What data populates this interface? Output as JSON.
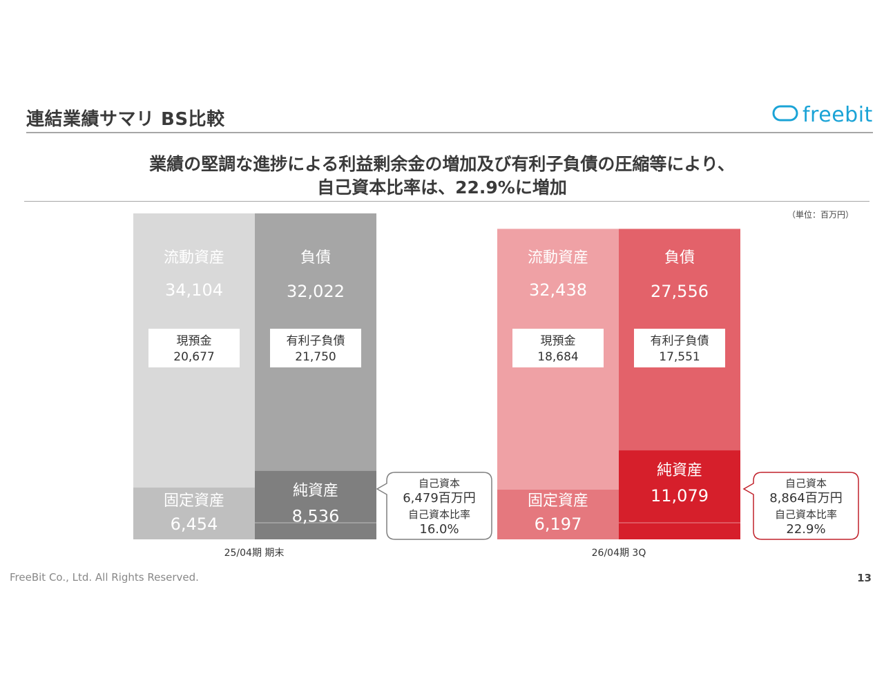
{
  "header": {
    "title": "連結業績サマリ BS比較",
    "logo_text": "freebit",
    "logo_icon": "cloud-icon",
    "brand_color": "#1aa3d6"
  },
  "headline": {
    "line1": "業績の堅調な進捗による利益剰余金の増加及び有利子負債の圧縮等により、",
    "line2": "自己資本比率は、22.9%に増加"
  },
  "unit_note": "（単位：百万円）",
  "footer": {
    "copyright": "FreeBit Co., Ltd. All Rights Reserved.",
    "page_number": "13"
  },
  "chart_data": {
    "type": "bar",
    "subtype": "balance-sheet-comparison",
    "periods": [
      {
        "label": "25/04期 期末",
        "scale_total": 40558,
        "colors": {
          "current_assets": "#d9d9d9",
          "fixed_assets": "#bfbfbf",
          "liabilities": "#a6a6a6",
          "net_assets": "#7f7f7f"
        },
        "assets": [
          {
            "name": "流動資産",
            "value": 34104,
            "display": "34,104"
          },
          {
            "name": "固定資産",
            "value": 6454,
            "display": "6,454"
          }
        ],
        "liabilities_side": [
          {
            "name": "負債",
            "value": 32022,
            "display": "32,022"
          },
          {
            "name": "純資産",
            "value": 8536,
            "display": "8,536"
          }
        ],
        "details": [
          {
            "label": "現預金",
            "value": 20677,
            "display": "20,677"
          },
          {
            "label": "有利子負債",
            "value": 21750,
            "display": "21,750"
          }
        ],
        "equity_callout": {
          "equity_label": "自己資本",
          "equity_value": "6,479百万円",
          "ratio_label": "自己資本比率",
          "ratio_value": "16.0%",
          "ratio": 16.0,
          "border_color": "#7f7f7f"
        }
      },
      {
        "label": "26/04期 3Q",
        "scale_total": 38635,
        "colors": {
          "current_assets": "#efa1a5",
          "fixed_assets": "#e5787e",
          "liabilities": "#e3626a",
          "net_assets": "#d61f2b"
        },
        "assets": [
          {
            "name": "流動資産",
            "value": 32438,
            "display": "32,438"
          },
          {
            "name": "固定資産",
            "value": 6197,
            "display": "6,197"
          }
        ],
        "liabilities_side": [
          {
            "name": "負債",
            "value": 27556,
            "display": "27,556"
          },
          {
            "name": "純資産",
            "value": 11079,
            "display": "11,079"
          }
        ],
        "details": [
          {
            "label": "現預金",
            "value": 18684,
            "display": "18,684"
          },
          {
            "label": "有利子負債",
            "value": 17551,
            "display": "17,551"
          }
        ],
        "equity_callout": {
          "equity_label": "自己資本",
          "equity_value": "8,864百万円",
          "ratio_label": "自己資本比率",
          "ratio_value": "22.9%",
          "ratio": 22.9,
          "border_color": "#c0202a"
        }
      }
    ]
  }
}
